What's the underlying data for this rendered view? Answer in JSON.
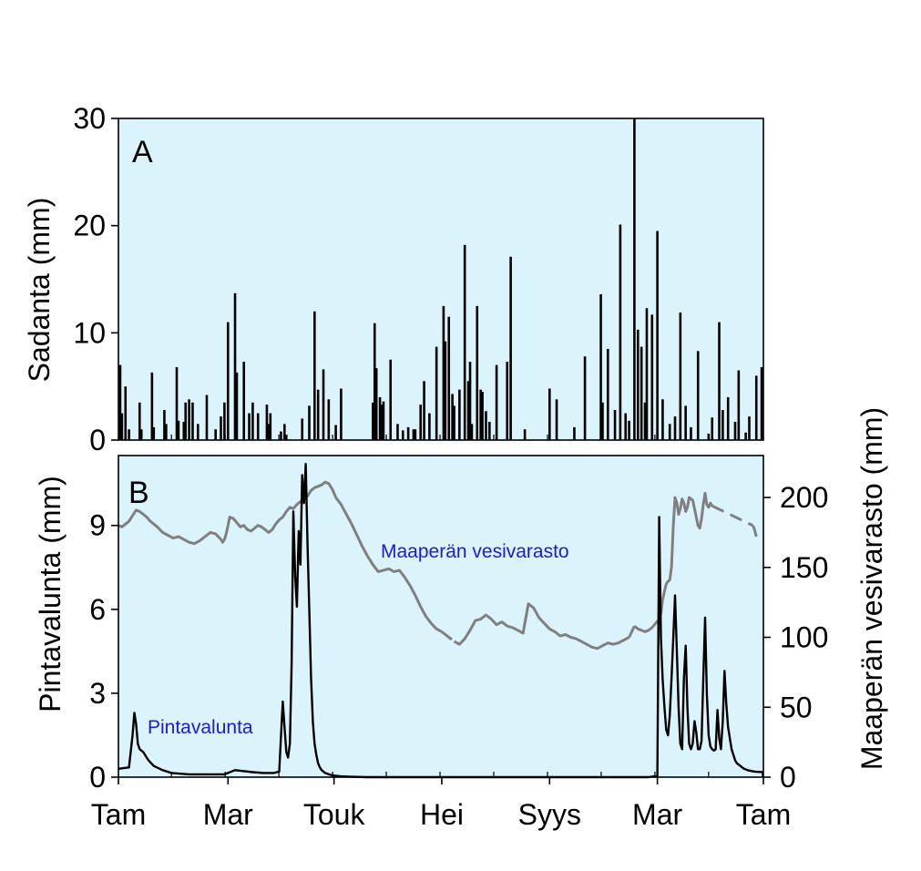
{
  "chart_data": [
    {
      "panel": "A",
      "type": "bar",
      "ylabel": "Sadanta (mm)",
      "ylim": [
        0,
        30
      ],
      "yticks": [
        0,
        10,
        20,
        30
      ],
      "background": "#dbf3fb",
      "bar_color": "#000000",
      "day_range": [
        0,
        365
      ],
      "x_label_note": "daily precipitation, values estimated from image",
      "days": [
        1,
        2,
        4,
        6,
        12,
        13,
        19,
        20,
        26,
        27,
        33,
        34,
        37,
        38,
        40,
        42,
        45,
        50,
        55,
        58,
        60,
        62,
        66,
        67,
        71,
        74,
        76,
        79,
        84,
        85,
        86,
        92,
        94,
        95,
        104,
        108,
        111,
        113,
        116,
        119,
        123,
        126,
        144,
        145,
        146,
        148,
        149,
        150,
        154,
        158,
        161,
        164,
        167,
        168,
        171,
        173,
        176,
        180,
        184,
        185,
        187,
        189,
        190,
        193,
        198,
        200
      ],
      "values": [
        7.0,
        2.5,
        5.0,
        1.0,
        3.5,
        1.0,
        6.3,
        1.2,
        2.8,
        1.5,
        6.8,
        1.8,
        1.7,
        3.5,
        3.8,
        3.5,
        1.5,
        4.2,
        1.0,
        2.2,
        3.5,
        11.0,
        13.7,
        6.3,
        7.3,
        2.5,
        3.5,
        2.5,
        3.3,
        1.5,
        2.5,
        0.8,
        1.5,
        0.5,
        2.0,
        3.2,
        12.0,
        4.7,
        6.6,
        3.8,
        1.4,
        4.8,
        3.5,
        10.9,
        6.7,
        4.0,
        3.3,
        3.6,
        7.5,
        1.5,
        0.9,
        1.2,
        1.0,
        1.0,
        3.3,
        5.5,
        2.5,
        8.7,
        12.5,
        9.2,
        11.5,
        4.3,
        3.2,
        4.7,
        5.5,
        1.5
      ],
      "days2": [
        196,
        199,
        203,
        205,
        206,
        208,
        210,
        214,
        220,
        222,
        230,
        244,
        248,
        258,
        264,
        273,
        274,
        277,
        281,
        284,
        287,
        289,
        292,
        294,
        296,
        298,
        299,
        302,
        305,
        308,
        312,
        315,
        318,
        321,
        324,
        328,
        334,
        336,
        340,
        342,
        345,
        349,
        351,
        355,
        357,
        361,
        364
      ],
      "values2": [
        18.2,
        7.3,
        12.5,
        4.7,
        4.5,
        2.7,
        1.7,
        7.0,
        7.3,
        17.1,
        1.0,
        4.8,
        3.8,
        1.2,
        7.8,
        13.6,
        3.5,
        8.5,
        2.8,
        20.1,
        2.5,
        1.8,
        30.0,
        10.3,
        8.7,
        3.5,
        12.3,
        11.7,
        19.5,
        3.8,
        1.5,
        2.2,
        11.9,
        3.2,
        1.2,
        8.3,
        0.6,
        2.1,
        11.0,
        2.8,
        4.0,
        1.7,
        6.5,
        0.7,
        2.2,
        6.0,
        6.8
      ]
    },
    {
      "panel": "B",
      "type": "line",
      "ylabel": "Pintavalunta (mm)",
      "ylim": [
        0,
        11.5
      ],
      "yticks": [
        0,
        3,
        6,
        9
      ],
      "y2label": "Maaperän vesivarasto (mm)",
      "y2lim": [
        0,
        230
      ],
      "y2ticks": [
        0,
        50,
        100,
        150,
        200
      ],
      "background": "#dbf3fb",
      "xtick_labels": [
        "Tam",
        "Mar",
        "Touk",
        "Hei",
        "Syys",
        "Mar",
        "Tam"
      ],
      "xtick_days": [
        0,
        62,
        122,
        183,
        244,
        305,
        365
      ],
      "series": [
        {
          "name": "Pintavalunta",
          "axis": "left",
          "color": "#000000",
          "x": [
            0,
            6,
            8,
            9,
            10,
            11,
            12,
            14,
            17,
            20,
            25,
            30,
            40,
            50,
            60,
            66,
            70,
            76,
            82,
            88,
            91,
            92,
            93,
            94,
            95,
            96,
            97,
            98,
            99,
            100,
            101,
            102,
            103,
            104,
            105,
            106,
            107,
            108,
            109,
            110,
            111,
            112,
            113,
            114,
            115,
            117,
            120,
            123,
            126,
            130,
            135,
            140,
            150,
            180,
            220,
            260,
            300,
            305,
            306,
            307,
            308,
            309,
            310,
            311,
            312,
            313,
            314,
            315,
            316,
            317,
            318,
            319,
            320,
            321,
            322,
            323,
            324,
            325,
            326,
            327,
            328,
            329,
            330,
            331,
            332,
            333,
            334,
            335,
            336,
            337,
            338,
            339,
            340,
            341,
            342,
            343,
            344,
            345,
            346,
            347,
            348,
            349,
            350,
            351,
            352,
            353,
            354,
            355,
            356,
            358,
            360,
            365
          ],
          "values": [
            0.3,
            0.35,
            1.5,
            2.3,
            1.9,
            1.2,
            1.0,
            0.9,
            0.6,
            0.4,
            0.25,
            0.15,
            0.1,
            0.1,
            0.1,
            0.25,
            0.22,
            0.18,
            0.15,
            0.15,
            0.2,
            1.5,
            2.7,
            1.8,
            0.9,
            0.7,
            1.2,
            4.0,
            9.5,
            7.2,
            6.1,
            8.8,
            7.6,
            10.8,
            9.8,
            11.2,
            8.3,
            6.0,
            3.6,
            2.0,
            1.2,
            0.8,
            0.5,
            0.35,
            0.25,
            0.15,
            0.08,
            0.05,
            0.03,
            0.02,
            0.01,
            0.0,
            0.0,
            0.0,
            0.0,
            0.0,
            0.0,
            0.05,
            9.3,
            5.0,
            3.5,
            2.5,
            1.7,
            1.5,
            2.2,
            3.5,
            5.0,
            6.5,
            4.5,
            2.5,
            1.2,
            1.0,
            3.5,
            4.7,
            2.5,
            1.2,
            1.0,
            1.2,
            2.0,
            1.6,
            1.0,
            1.0,
            1.3,
            3.5,
            5.7,
            3.0,
            1.5,
            1.1,
            1.0,
            0.95,
            1.0,
            2.4,
            1.4,
            1.0,
            2.0,
            3.8,
            2.6,
            1.8,
            1.4,
            1.0,
            0.8,
            0.6,
            0.5,
            0.45,
            0.4,
            0.35,
            0.3,
            0.28,
            0.25,
            0.22,
            0.2,
            0.18
          ]
        },
        {
          "name": "Maaperän vesivarasto",
          "axis": "right",
          "color": "#808080",
          "x": [
            0,
            2,
            4,
            6,
            8,
            10,
            12,
            14,
            16,
            18,
            20,
            22,
            25,
            28,
            31,
            34,
            37,
            40,
            43,
            46,
            49,
            52,
            55,
            58,
            59,
            60,
            61,
            62,
            63,
            65,
            67,
            69,
            71,
            73,
            75,
            77,
            79,
            81,
            83,
            85,
            87,
            89,
            91,
            93,
            95,
            97,
            99,
            101,
            103,
            105,
            107,
            109,
            111,
            113,
            115,
            117,
            119,
            121,
            123,
            126,
            129,
            132,
            135,
            138,
            141,
            144,
            147,
            150,
            153,
            156,
            159,
            162,
            165,
            168,
            171,
            174,
            177,
            180,
            183,
            null,
            190,
            193,
            196,
            199,
            202,
            205,
            208,
            211,
            214,
            217,
            220,
            223,
            226,
            229,
            232,
            235,
            238,
            241,
            244,
            247,
            250,
            253,
            256,
            259,
            262,
            265,
            268,
            271,
            274,
            277,
            280,
            283,
            286,
            289,
            null,
            292,
            294,
            296,
            298,
            300,
            302,
            304,
            306,
            307,
            308,
            309,
            310,
            311,
            312,
            313,
            314,
            315,
            316,
            317,
            318,
            319,
            320,
            321,
            322,
            323,
            324,
            325,
            326,
            327,
            328,
            329,
            330,
            331,
            332,
            333,
            334,
            335,
            336,
            null,
            359,
            360,
            361
          ],
          "values": [
            180,
            179,
            181,
            183,
            187,
            191,
            190,
            188,
            186,
            183,
            181,
            179,
            175,
            173,
            171,
            172,
            170,
            168,
            167,
            169,
            172,
            175,
            174,
            170,
            168,
            170,
            174,
            180,
            186,
            185,
            182,
            179,
            180,
            177,
            176,
            178,
            180,
            179,
            177,
            175,
            177,
            181,
            184,
            186,
            190,
            193,
            192,
            195,
            197,
            199,
            201,
            205,
            207,
            208,
            209,
            211,
            210,
            206,
            200,
            195,
            188,
            181,
            173,
            165,
            158,
            152,
            147,
            148,
            149,
            147,
            148,
            143,
            137,
            130,
            122,
            115,
            110,
            106,
            104,
            null,
            97,
            95,
            99,
            105,
            112,
            113,
            116,
            113,
            109,
            111,
            108,
            107,
            105,
            103,
            124,
            121,
            114,
            110,
            106,
            104,
            101,
            102,
            100,
            99,
            97,
            95,
            93,
            92,
            94,
            96,
            95,
            96,
            98,
            100,
            null,
            108,
            106,
            105,
            104,
            105,
            107,
            110,
            113,
            117,
            127,
            133,
            138,
            140,
            141,
            150,
            180,
            200,
            196,
            188,
            192,
            199,
            196,
            190,
            193,
            200,
            199,
            198,
            192,
            186,
            180,
            178,
            185,
            195,
            203,
            195,
            193,
            196,
            194,
            null,
            180,
            177,
            172
          ],
          "dashed_segments": [
            [
              184,
              189
            ],
            [
              290,
              291
            ],
            [
              337,
              358
            ]
          ]
        }
      ],
      "annotations": [
        {
          "text": "Maaperän vesivarasto",
          "series": "Maaperän vesivarasto"
        },
        {
          "text": "Pintavalunta",
          "series": "Pintavalunta"
        }
      ]
    }
  ],
  "panels": {
    "a_tag": "A",
    "b_tag": "B",
    "a_ylabel": "Sadanta (mm)",
    "b_ylabel": "Pintavalunta (mm)",
    "b_y2label": "Maaperän vesivarasto (mm)",
    "annot_soil": "Maaperän vesivarasto",
    "annot_runoff": "Pintavalunta"
  }
}
